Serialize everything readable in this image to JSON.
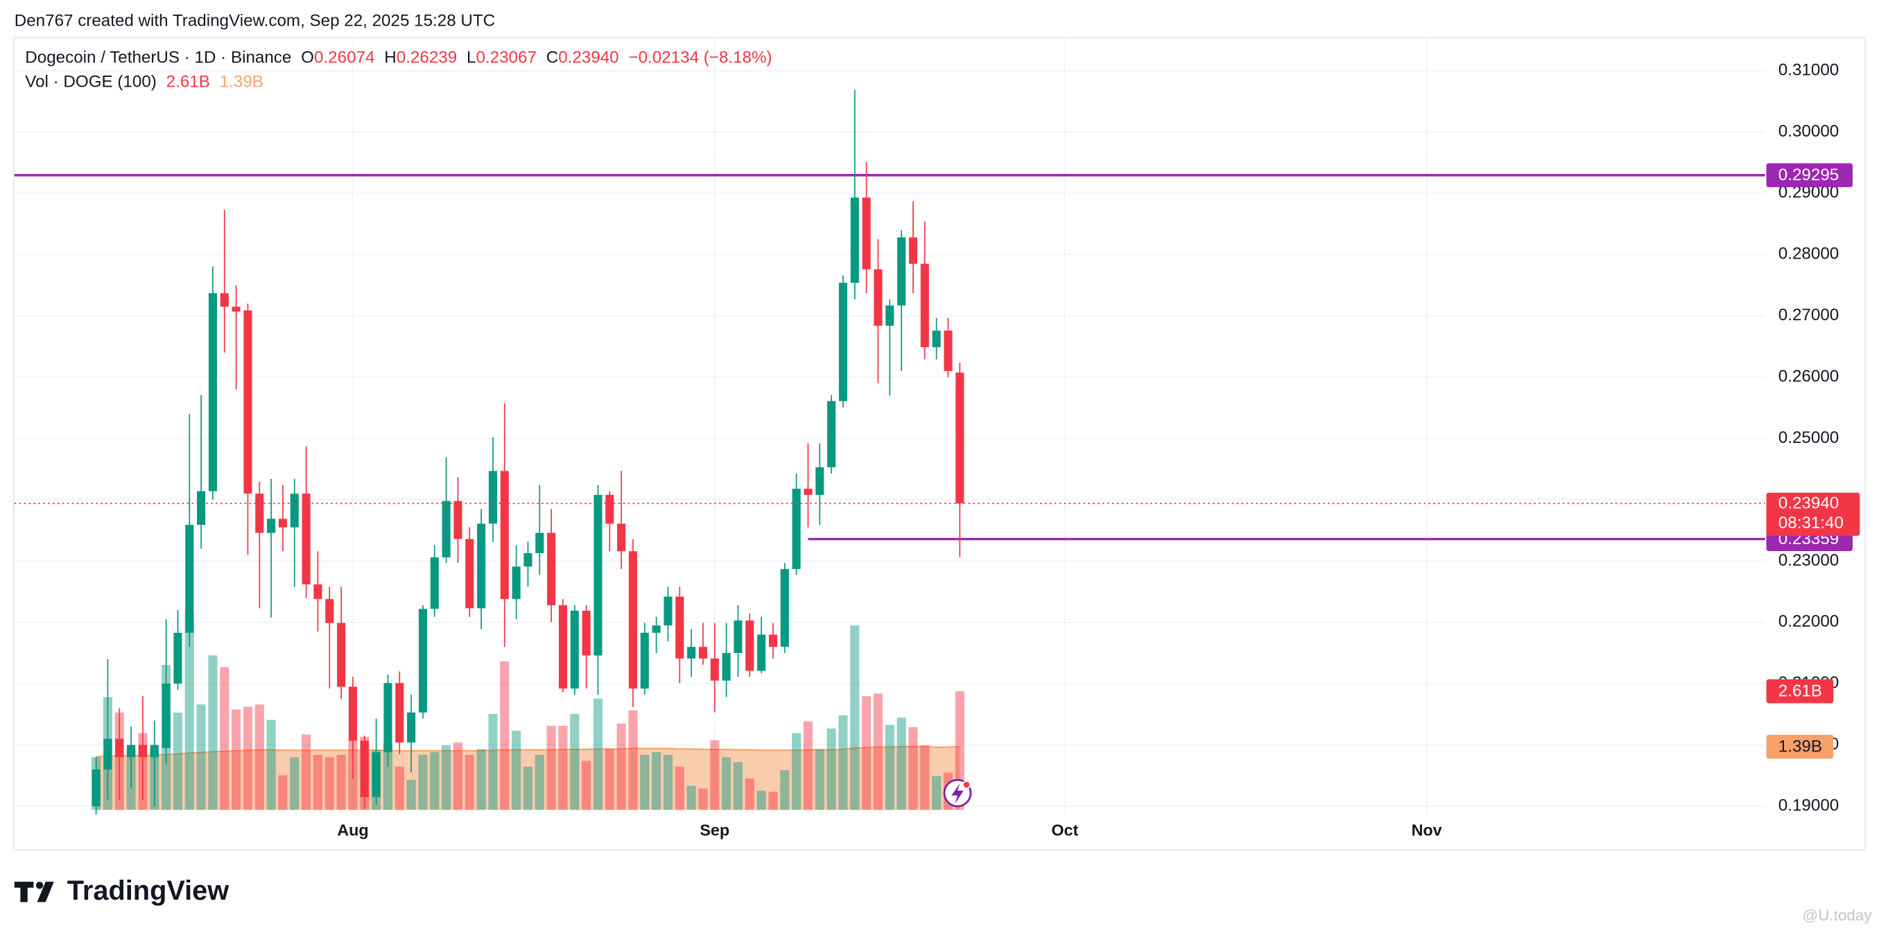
{
  "caption": "Den767 created with TradingView.com, Sep 22, 2025 15:28 UTC",
  "brand": "TradingView",
  "watermark": "@U.today",
  "chart_data": {
    "type": "candlestick",
    "title": "Dogecoin / TetherUS · 1D · Binance",
    "legend": [
      {
        "key": "O",
        "value": "0.26074"
      },
      {
        "key": "H",
        "value": "0.26239"
      },
      {
        "key": "L",
        "value": "0.23067"
      },
      {
        "key": "C",
        "value": "0.23940"
      }
    ],
    "change": "−0.02134 (−8.18%)",
    "volume_title": "Vol · DOGE (100)",
    "volume_last_label": "2.61B",
    "volume_ma_last_label": "1.39B",
    "last_label": "0.23940",
    "countdown": "08:31:40",
    "up_color": "#089981",
    "down_color": "#f23645",
    "ma_color": "#f7a069",
    "line_color": "#9c27b0",
    "x": [
      "2025-07-10",
      "2025-07-11",
      "2025-07-12",
      "2025-07-13",
      "2025-07-14",
      "2025-07-15",
      "2025-07-16",
      "2025-07-17",
      "2025-07-18",
      "2025-07-19",
      "2025-07-20",
      "2025-07-21",
      "2025-07-22",
      "2025-07-23",
      "2025-07-24",
      "2025-07-25",
      "2025-07-26",
      "2025-07-27",
      "2025-07-28",
      "2025-07-29",
      "2025-07-30",
      "2025-07-31",
      "2025-08-01",
      "2025-08-02",
      "2025-08-03",
      "2025-08-04",
      "2025-08-05",
      "2025-08-06",
      "2025-08-07",
      "2025-08-08",
      "2025-08-09",
      "2025-08-10",
      "2025-08-11",
      "2025-08-12",
      "2025-08-13",
      "2025-08-14",
      "2025-08-15",
      "2025-08-16",
      "2025-08-17",
      "2025-08-18",
      "2025-08-19",
      "2025-08-20",
      "2025-08-21",
      "2025-08-22",
      "2025-08-23",
      "2025-08-24",
      "2025-08-25",
      "2025-08-26",
      "2025-08-27",
      "2025-08-28",
      "2025-08-29",
      "2025-08-30",
      "2025-08-31",
      "2025-09-01",
      "2025-09-02",
      "2025-09-03",
      "2025-09-04",
      "2025-09-05",
      "2025-09-06",
      "2025-09-07",
      "2025-09-08",
      "2025-09-09",
      "2025-09-10",
      "2025-09-11",
      "2025-09-12",
      "2025-09-13",
      "2025-09-14",
      "2025-09-15",
      "2025-09-16",
      "2025-09-17",
      "2025-09-18",
      "2025-09-19",
      "2025-09-20",
      "2025-09-21",
      "2025-09-22"
    ],
    "open": [
      0.19,
      0.196,
      0.201,
      0.198,
      0.2,
      0.198,
      0.1995,
      0.21,
      0.2183,
      0.2359,
      0.2414,
      0.2737,
      0.2715,
      0.2709,
      0.241,
      0.2346,
      0.2369,
      0.2355,
      0.241,
      0.2262,
      0.2238,
      0.2199,
      0.2095,
      0.2007,
      0.1915,
      0.1988,
      0.2101,
      0.2004,
      0.2053,
      0.2222,
      0.2306,
      0.2398,
      0.2336,
      0.2223,
      0.2361,
      0.2447,
      0.2238,
      0.2291,
      0.2313,
      0.2346,
      0.2228,
      0.2092,
      0.2219,
      0.2146,
      0.2408,
      0.2361,
      0.2316,
      0.2092,
      0.2183,
      0.2195,
      0.2242,
      0.2141,
      0.216,
      0.2141,
      0.2105,
      0.215,
      0.2203,
      0.2121,
      0.218,
      0.216,
      0.2287,
      0.2418,
      0.2408,
      0.2453,
      0.2561,
      0.2754,
      0.2893,
      0.2776,
      0.2684,
      0.2717,
      0.2828,
      0.2785,
      0.2649,
      0.2676,
      0.26074
    ],
    "high": [
      0.198,
      0.214,
      0.206,
      0.203,
      0.208,
      0.204,
      0.2205,
      0.222,
      0.254,
      0.2571,
      0.2781,
      0.2873,
      0.275,
      0.272,
      0.243,
      0.2434,
      0.2424,
      0.2434,
      0.2487,
      0.2316,
      0.2258,
      0.2258,
      0.2111,
      0.2015,
      0.2043,
      0.2115,
      0.212,
      0.2082,
      0.2228,
      0.2326,
      0.2469,
      0.2437,
      0.2355,
      0.2385,
      0.2502,
      0.2557,
      0.2326,
      0.2332,
      0.2424,
      0.2385,
      0.2238,
      0.2228,
      0.2228,
      0.2424,
      0.2414,
      0.2447,
      0.2336,
      0.2199,
      0.2209,
      0.2258,
      0.2258,
      0.2189,
      0.2199,
      0.2199,
      0.2199,
      0.2228,
      0.2215,
      0.2209,
      0.2199,
      0.2297,
      0.2443,
      0.2492,
      0.2492,
      0.2571,
      0.2766,
      0.3069,
      0.2951,
      0.2825,
      0.2727,
      0.284,
      0.2887,
      0.2854,
      0.2697,
      0.2697,
      0.26239
    ],
    "low": [
      0.188,
      0.191,
      0.191,
      0.193,
      0.191,
      0.19,
      0.197,
      0.209,
      0.216,
      0.232,
      0.24,
      0.264,
      0.258,
      0.231,
      0.2223,
      0.2208,
      0.2316,
      0.2258,
      0.224,
      0.2185,
      0.2092,
      0.2075,
      0.1945,
      0.1895,
      0.1902,
      0.1965,
      0.1985,
      0.1955,
      0.2043,
      0.2209,
      0.2297,
      0.2297,
      0.2209,
      0.2189,
      0.2331,
      0.216,
      0.2205,
      0.2258,
      0.2277,
      0.22,
      0.2086,
      0.2082,
      0.2092,
      0.2082,
      0.2316,
      0.2287,
      0.2062,
      0.2082,
      0.215,
      0.2169,
      0.2101,
      0.2111,
      0.2131,
      0.2053,
      0.2078,
      0.2111,
      0.2111,
      0.2117,
      0.2141,
      0.215,
      0.2277,
      0.2355,
      0.2359,
      0.2443,
      0.2551,
      0.2727,
      0.2737,
      0.259,
      0.257,
      0.261,
      0.2737,
      0.2629,
      0.2629,
      0.26,
      0.23067
    ],
    "close": [
      0.196,
      0.201,
      0.198,
      0.2,
      0.198,
      0.2,
      0.21,
      0.2183,
      0.2359,
      0.2414,
      0.2737,
      0.2715,
      0.2707,
      0.241,
      0.2346,
      0.2369,
      0.2355,
      0.241,
      0.2262,
      0.2238,
      0.2199,
      0.2095,
      0.2007,
      0.1915,
      0.1988,
      0.2101,
      0.2004,
      0.2053,
      0.2222,
      0.2306,
      0.2398,
      0.2336,
      0.2223,
      0.2361,
      0.2447,
      0.2238,
      0.2291,
      0.2313,
      0.2346,
      0.2228,
      0.2092,
      0.2219,
      0.2146,
      0.2408,
      0.2361,
      0.2316,
      0.2092,
      0.2183,
      0.2195,
      0.2242,
      0.2141,
      0.216,
      0.2141,
      0.2105,
      0.215,
      0.2203,
      0.2121,
      0.218,
      0.216,
      0.2287,
      0.2418,
      0.2408,
      0.2453,
      0.2561,
      0.2754,
      0.2893,
      0.2776,
      0.2684,
      0.2717,
      0.2828,
      0.2785,
      0.2649,
      0.2676,
      0.261,
      0.2394
    ],
    "volume": [
      1.16,
      2.48,
      2.14,
      1.34,
      1.69,
      1.34,
      3.19,
      2.14,
      4.38,
      2.32,
      3.4,
      3.14,
      2.21,
      2.27,
      2.32,
      1.98,
      0.76,
      1.16,
      1.66,
      1.21,
      1.16,
      1.21,
      1.53,
      1.61,
      1.32,
      1.48,
      0.95,
      0.66,
      1.21,
      1.27,
      1.42,
      1.48,
      1.21,
      1.34,
      2.11,
      3.27,
      1.74,
      0.95,
      1.21,
      1.85,
      1.85,
      2.11,
      1.08,
      2.45,
      1.34,
      1.9,
      2.19,
      1.21,
      1.27,
      1.21,
      0.95,
      0.53,
      0.47,
      1.53,
      1.16,
      1.05,
      0.69,
      0.42,
      0.4,
      0.87,
      1.69,
      1.95,
      1.34,
      1.79,
      2.08,
      4.06,
      2.5,
      2.56,
      1.87,
      2.03,
      1.82,
      1.42,
      0.74,
      0.82,
      2.61
    ],
    "volume_ma": [
      1.17,
      1.18,
      1.19,
      1.19,
      1.2,
      1.2,
      1.22,
      1.23,
      1.25,
      1.26,
      1.28,
      1.29,
      1.3,
      1.31,
      1.32,
      1.32,
      1.31,
      1.31,
      1.31,
      1.31,
      1.31,
      1.31,
      1.31,
      1.31,
      1.31,
      1.31,
      1.3,
      1.3,
      1.3,
      1.3,
      1.3,
      1.3,
      1.3,
      1.3,
      1.31,
      1.32,
      1.32,
      1.32,
      1.32,
      1.32,
      1.33,
      1.33,
      1.33,
      1.34,
      1.34,
      1.34,
      1.35,
      1.35,
      1.35,
      1.35,
      1.34,
      1.34,
      1.33,
      1.33,
      1.33,
      1.32,
      1.32,
      1.31,
      1.31,
      1.31,
      1.31,
      1.32,
      1.32,
      1.32,
      1.33,
      1.36,
      1.37,
      1.38,
      1.38,
      1.39,
      1.39,
      1.39,
      1.38,
      1.38,
      1.39
    ],
    "volume_ylim": [
      0,
      8
    ],
    "xlim": [
      "2025-07-03",
      "2025-11-30"
    ],
    "xticks": [
      {
        "value": "2025-08-01",
        "label": "Aug"
      },
      {
        "value": "2025-09-01",
        "label": "Sep"
      },
      {
        "value": "2025-10-01",
        "label": "Oct"
      },
      {
        "value": "2025-11-01",
        "label": "Nov"
      }
    ],
    "ylim": [
      0.18863,
      0.31528
    ],
    "yticks": [
      {
        "value": 0.31,
        "label": "0.31000"
      },
      {
        "value": 0.3,
        "label": "0.30000"
      },
      {
        "value": 0.29,
        "label": "0.29000"
      },
      {
        "value": 0.28,
        "label": "0.28000"
      },
      {
        "value": 0.27,
        "label": "0.27000"
      },
      {
        "value": 0.26,
        "label": "0.26000"
      },
      {
        "value": 0.25,
        "label": "0.25000"
      },
      {
        "value": 0.24,
        "label": "0.24000"
      },
      {
        "value": 0.23,
        "label": "0.23000"
      },
      {
        "value": 0.22,
        "label": "0.22000"
      },
      {
        "value": 0.21,
        "label": "0.21000"
      },
      {
        "value": 0.2,
        "label": "0.20000"
      },
      {
        "value": 0.19,
        "label": "0.19000"
      }
    ],
    "grid": true,
    "hlines": [
      {
        "value": 0.29295,
        "label": "0.29295"
      },
      {
        "value": 0.23359,
        "label": "0.23359",
        "start": "2025-09-09"
      }
    ]
  }
}
